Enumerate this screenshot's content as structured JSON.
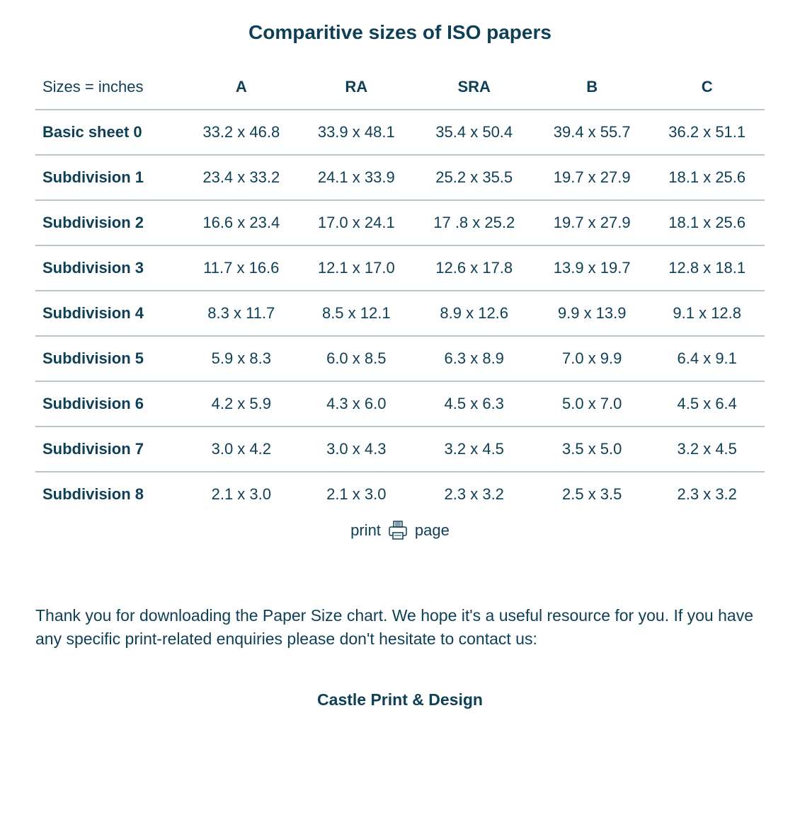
{
  "title": "Comparitive sizes of ISO papers",
  "colors": {
    "text": "#0d3f56",
    "border": "#b8c6cc",
    "background": "#ffffff"
  },
  "table": {
    "header_left": "Sizes = inches",
    "columns": [
      "A",
      "RA",
      "SRA",
      "B",
      "C"
    ],
    "rows": [
      {
        "label": "Basic sheet 0",
        "cells": [
          "33.2 x 46.8",
          "33.9 x 48.1",
          "35.4 x 50.4",
          "39.4 x 55.7",
          "36.2 x 51.1"
        ]
      },
      {
        "label": "Subdivision 1",
        "cells": [
          "23.4 x 33.2",
          "24.1 x 33.9",
          "25.2 x 35.5",
          "19.7 x 27.9",
          "18.1 x 25.6"
        ]
      },
      {
        "label": "Subdivision 2",
        "cells": [
          "16.6 x 23.4",
          "17.0 x 24.1",
          "17 .8 x 25.2",
          "19.7 x 27.9",
          "18.1 x 25.6"
        ]
      },
      {
        "label": "Subdivision 3",
        "cells": [
          "11.7 x 16.6",
          "12.1 x 17.0",
          "12.6 x 17.8",
          "13.9 x 19.7",
          "12.8 x 18.1"
        ]
      },
      {
        "label": "Subdivision 4",
        "cells": [
          "8.3 x 11.7",
          "8.5 x 12.1",
          "8.9 x 12.6",
          "9.9 x 13.9",
          "9.1 x 12.8"
        ]
      },
      {
        "label": "Subdivision 5",
        "cells": [
          "5.9 x 8.3",
          "6.0 x 8.5",
          "6.3 x 8.9",
          "7.0 x 9.9",
          "6.4 x 9.1"
        ]
      },
      {
        "label": "Subdivision 6",
        "cells": [
          "4.2 x 5.9",
          "4.3 x 6.0",
          "4.5 x 6.3",
          "5.0 x 7.0",
          "4.5 x 6.4"
        ]
      },
      {
        "label": "Subdivision 7",
        "cells": [
          "3.0 x 4.2",
          "3.0 x 4.3",
          "3.2 x 4.5",
          "3.5 x 5.0",
          "3.2 x 4.5"
        ]
      },
      {
        "label": "Subdivision 8",
        "cells": [
          "2.1 x 3.0",
          "2.1 x 3.0",
          "2.3 x 3.2",
          "2.5 x 3.5",
          "2.3 x 3.2"
        ]
      }
    ]
  },
  "print": {
    "left_text": "print",
    "right_text": "page",
    "icon": "printer-icon"
  },
  "thanks_text": "Thank you for downloading the Paper Size chart. We hope it's a useful resource for you. If you have any specific print-related enquiries please don't hesitate to contact us:",
  "company": "Castle Print & Design"
}
